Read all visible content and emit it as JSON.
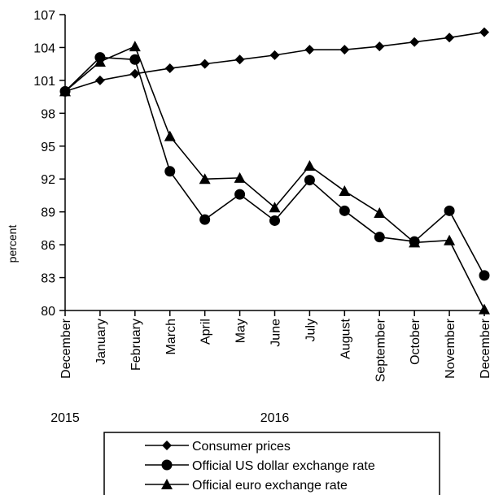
{
  "chart_data": {
    "type": "line",
    "title": "",
    "xlabel": "",
    "ylabel": "percent",
    "ylim": [
      80,
      107
    ],
    "yticks": [
      80,
      83,
      86,
      89,
      92,
      95,
      98,
      101,
      104,
      107
    ],
    "categories": [
      "December",
      "January",
      "February",
      "March",
      "April",
      "May",
      "June",
      "July",
      "August",
      "September",
      "October",
      "November",
      "December"
    ],
    "year_labels": [
      {
        "label": "2015",
        "category_index": 0
      },
      {
        "label": "2016",
        "category_index": 6
      }
    ],
    "legend_position": "bottom",
    "grid": false,
    "series": [
      {
        "name": "Consumer prices",
        "marker": "diamond",
        "values": [
          100.0,
          101.0,
          101.6,
          102.1,
          102.5,
          102.9,
          103.3,
          103.8,
          103.8,
          104.1,
          104.5,
          104.9,
          105.4
        ]
      },
      {
        "name": "Official US dollar exchange rate",
        "marker": "circle",
        "values": [
          100.0,
          103.1,
          102.9,
          92.7,
          88.3,
          90.6,
          88.2,
          91.9,
          89.1,
          86.7,
          86.3,
          89.1,
          83.2
        ]
      },
      {
        "name": "Official euro exchange rate",
        "marker": "triangle",
        "values": [
          100.0,
          102.7,
          104.1,
          95.9,
          92.0,
          92.1,
          89.4,
          93.2,
          90.9,
          88.9,
          86.2,
          86.4,
          80.1
        ]
      }
    ]
  }
}
